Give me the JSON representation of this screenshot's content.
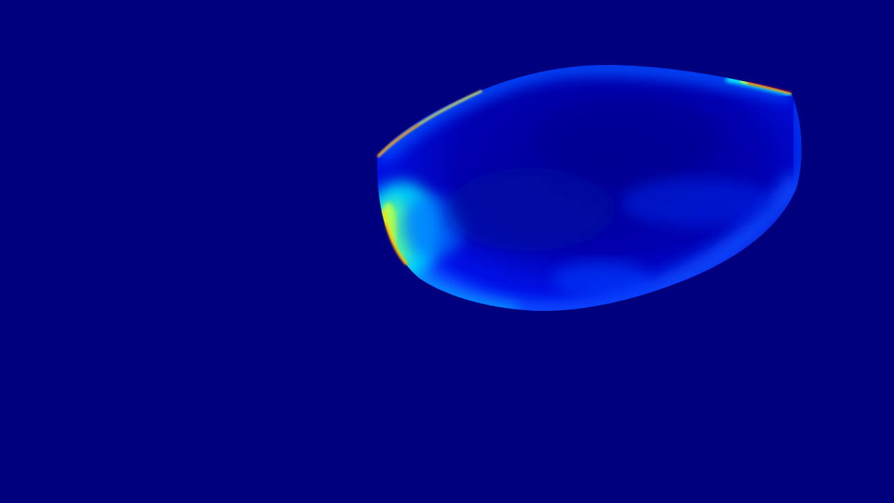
{
  "scene": {
    "background_color": "#00007f",
    "object": {
      "kind": "heatmap-rendered-surface",
      "colormap": "jet",
      "colormap_stops": [
        "#00007f",
        "#0000ff",
        "#0080ff",
        "#00ffff",
        "#80ff80",
        "#ffff00",
        "#ff8000",
        "#ff0000"
      ],
      "base_color": "#0000b8"
    }
  }
}
